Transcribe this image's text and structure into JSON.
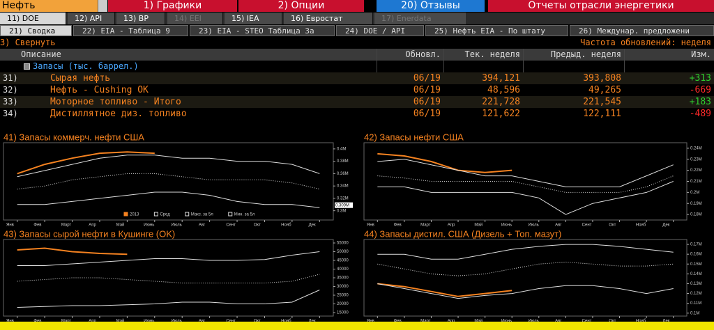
{
  "toolbar": {
    "security": "Нефть",
    "menus": [
      "1) Графики",
      "2) Опции",
      "20) Отзывы"
    ],
    "title": "Отчеты отрасли энергетики"
  },
  "tabs": [
    {
      "label": "11) DOE",
      "active": true
    },
    {
      "label": "12) API"
    },
    {
      "label": "13) BP"
    },
    {
      "label": "14) EEI",
      "disabled": true
    },
    {
      "label": "15) IEA"
    },
    {
      "label": "16) Евростат"
    },
    {
      "label": "17) Enerdata",
      "disabled": true
    }
  ],
  "subtabs": [
    {
      "label": "21) Сводка",
      "active": true
    },
    {
      "label": "22) EIA - Таблица 9"
    },
    {
      "label": "23) EIA - STEO Таблица 3а"
    },
    {
      "label": "24) DOE / API"
    },
    {
      "label": "25) Нефть EIA - По штату"
    },
    {
      "label": "26) Междунар. предложени"
    }
  ],
  "collapse": "3) Свернуть",
  "frequency": "Частота обновлений: неделя",
  "table": {
    "columns": [
      "Описание",
      "Обновл.",
      "Тек. неделя",
      "Предыд. неделя",
      "Изм."
    ],
    "group": "Запасы (тыс. баррел.)",
    "rows": [
      {
        "id": "31)",
        "name": "Сырая нефть",
        "updated": "06/19",
        "current": "394,121",
        "previous": "393,808",
        "change": "+313",
        "change_color": "#2fd12f"
      },
      {
        "id": "32)",
        "name": "Нефть - Cushing OK",
        "updated": "06/19",
        "current": "48,596",
        "previous": "49,265",
        "change": "-669",
        "change_color": "#ff2a2a"
      },
      {
        "id": "33)",
        "name": "Моторное топливо - Итого",
        "updated": "06/19",
        "current": "221,728",
        "previous": "221,545",
        "change": "+183",
        "change_color": "#2fd12f"
      },
      {
        "id": "34)",
        "name": "Дистиллятное диз. топливо",
        "updated": "06/19",
        "current": "121,622",
        "previous": "122,111",
        "change": "-489",
        "change_color": "#ff2a2a"
      }
    ]
  },
  "chart_data": [
    {
      "type": "line",
      "title": "41) Запасы коммерч. нефти США",
      "categories": [
        "Янв",
        "Фев",
        "Март",
        "Апр",
        "Май",
        "Июнь",
        "Июль",
        "Авг",
        "Сент",
        "Окт",
        "Нояб",
        "Дек"
      ],
      "ylim": [
        285000,
        410000
      ],
      "yticks": [
        {
          "value": 300000,
          "label": "0.3M"
        },
        {
          "value": 320000,
          "label": "0.32M"
        },
        {
          "value": 340000,
          "label": "0.34M"
        },
        {
          "value": 360000,
          "label": "0.36M"
        },
        {
          "value": 380000,
          "label": "0.38M"
        },
        {
          "value": 400000,
          "label": "0.4M"
        }
      ],
      "annotation": {
        "value": 309000,
        "label": "0.309M"
      },
      "legend": "lower right",
      "series": [
        {
          "name": "2013",
          "color": "#f58220",
          "values": [
            360000,
            375000,
            385000,
            393000,
            395000,
            393000,
            null,
            null,
            null,
            null,
            null,
            null
          ]
        },
        {
          "name": "Сред",
          "color": "#dddddd",
          "dash": true,
          "values": [
            335000,
            340000,
            350000,
            355000,
            360000,
            360000,
            355000,
            350000,
            350000,
            350000,
            345000,
            335000
          ]
        },
        {
          "name": "Макс. за 5л",
          "color": "#dddddd",
          "values": [
            355000,
            365000,
            375000,
            385000,
            390000,
            390000,
            385000,
            385000,
            380000,
            380000,
            375000,
            360000
          ]
        },
        {
          "name": "Мин. за 5л",
          "color": "#dddddd",
          "values": [
            310000,
            310000,
            315000,
            320000,
            325000,
            330000,
            330000,
            325000,
            315000,
            310000,
            310000,
            305000
          ]
        }
      ]
    },
    {
      "type": "line",
      "title": "42) Запасы нефти США",
      "categories": [
        "Янв",
        "Фев",
        "Март",
        "Апр",
        "Май",
        "Июнь",
        "Июль",
        "Авг",
        "Сент",
        "Окт",
        "Нояб",
        "Дек"
      ],
      "ylim": [
        175000,
        245000
      ],
      "yticks": [
        {
          "value": 180000,
          "label": "0.18M"
        },
        {
          "value": 190000,
          "label": "0.19M"
        },
        {
          "value": 200000,
          "label": "0.2M"
        },
        {
          "value": 210000,
          "label": "0.21M"
        },
        {
          "value": 220000,
          "label": "0.22M"
        },
        {
          "value": 230000,
          "label": "0.23M"
        },
        {
          "value": 240000,
          "label": "0.24M"
        }
      ],
      "series": [
        {
          "color": "#f58220",
          "values": [
            235000,
            233000,
            228000,
            220000,
            218000,
            220000,
            null,
            null,
            null,
            null,
            null,
            null
          ]
        },
        {
          "color": "#dddddd",
          "dash": true,
          "values": [
            215000,
            213000,
            210000,
            210000,
            210000,
            210000,
            205000,
            200000,
            200000,
            200000,
            205000,
            215000
          ]
        },
        {
          "color": "#dddddd",
          "values": [
            228000,
            230000,
            225000,
            220000,
            215000,
            215000,
            210000,
            205000,
            205000,
            205000,
            215000,
            225000
          ]
        },
        {
          "color": "#dddddd",
          "values": [
            205000,
            205000,
            200000,
            200000,
            200000,
            200000,
            195000,
            180000,
            190000,
            195000,
            200000,
            210000
          ]
        }
      ]
    },
    {
      "type": "line",
      "title": "43) Запасы сырой нефти в Кушинге (OK)",
      "categories": [
        "Янв",
        "Фев",
        "Март",
        "Апр",
        "Май",
        "Июнь",
        "Июль",
        "Авг",
        "Сент",
        "Окт",
        "Нояб",
        "Дек"
      ],
      "ylim": [
        13000,
        57000
      ],
      "yticks": [
        15000,
        20000,
        25000,
        30000,
        35000,
        40000,
        45000,
        50000,
        55000
      ],
      "series": [
        {
          "color": "#f58220",
          "values": [
            51000,
            52000,
            50000,
            49000,
            48500,
            null,
            null,
            null,
            null,
            null,
            null,
            null
          ]
        },
        {
          "color": "#dddddd",
          "dash": true,
          "values": [
            33000,
            34000,
            35000,
            35000,
            34000,
            33000,
            32000,
            32000,
            32000,
            32000,
            33000,
            37000
          ]
        },
        {
          "color": "#dddddd",
          "values": [
            42000,
            42000,
            43000,
            44000,
            45000,
            46000,
            46000,
            45000,
            45000,
            45500,
            48000,
            50000
          ]
        },
        {
          "color": "#dddddd",
          "values": [
            18000,
            18500,
            19000,
            19000,
            19500,
            20000,
            21000,
            21000,
            20000,
            20000,
            21000,
            28000
          ]
        }
      ]
    },
    {
      "type": "line",
      "title": "44) Запасы дистил. США (Дизель + Топ. мазут)",
      "categories": [
        "Янв",
        "Фев",
        "Март",
        "Апр",
        "Май",
        "Июнь",
        "Июль",
        "Авг",
        "Сент",
        "Окт",
        "Нояб",
        "Дек"
      ],
      "ylim": [
        97000,
        175000
      ],
      "yticks": [
        {
          "value": 100000,
          "label": "0.1M"
        },
        {
          "value": 110000,
          "label": "0.11M"
        },
        {
          "value": 120000,
          "label": "0.12M"
        },
        {
          "value": 130000,
          "label": "0.13M"
        },
        {
          "value": 140000,
          "label": "0.14M"
        },
        {
          "value": 150000,
          "label": "0.15M"
        },
        {
          "value": 160000,
          "label": "0.16M"
        },
        {
          "value": 170000,
          "label": "0.17M"
        }
      ],
      "series": [
        {
          "color": "#f58220",
          "values": [
            130000,
            127000,
            122000,
            117000,
            120000,
            123000,
            null,
            null,
            null,
            null,
            null,
            null
          ]
        },
        {
          "color": "#dddddd",
          "dash": true,
          "values": [
            150000,
            145000,
            140000,
            138000,
            140000,
            145000,
            150000,
            152000,
            150000,
            148000,
            148000,
            150000
          ]
        },
        {
          "color": "#dddddd",
          "values": [
            160000,
            160000,
            155000,
            155000,
            160000,
            165000,
            168000,
            170000,
            170000,
            168000,
            165000,
            162000
          ]
        },
        {
          "color": "#dddddd",
          "values": [
            130000,
            125000,
            120000,
            115000,
            118000,
            120000,
            125000,
            128000,
            128000,
            125000,
            120000,
            125000
          ]
        }
      ]
    }
  ]
}
